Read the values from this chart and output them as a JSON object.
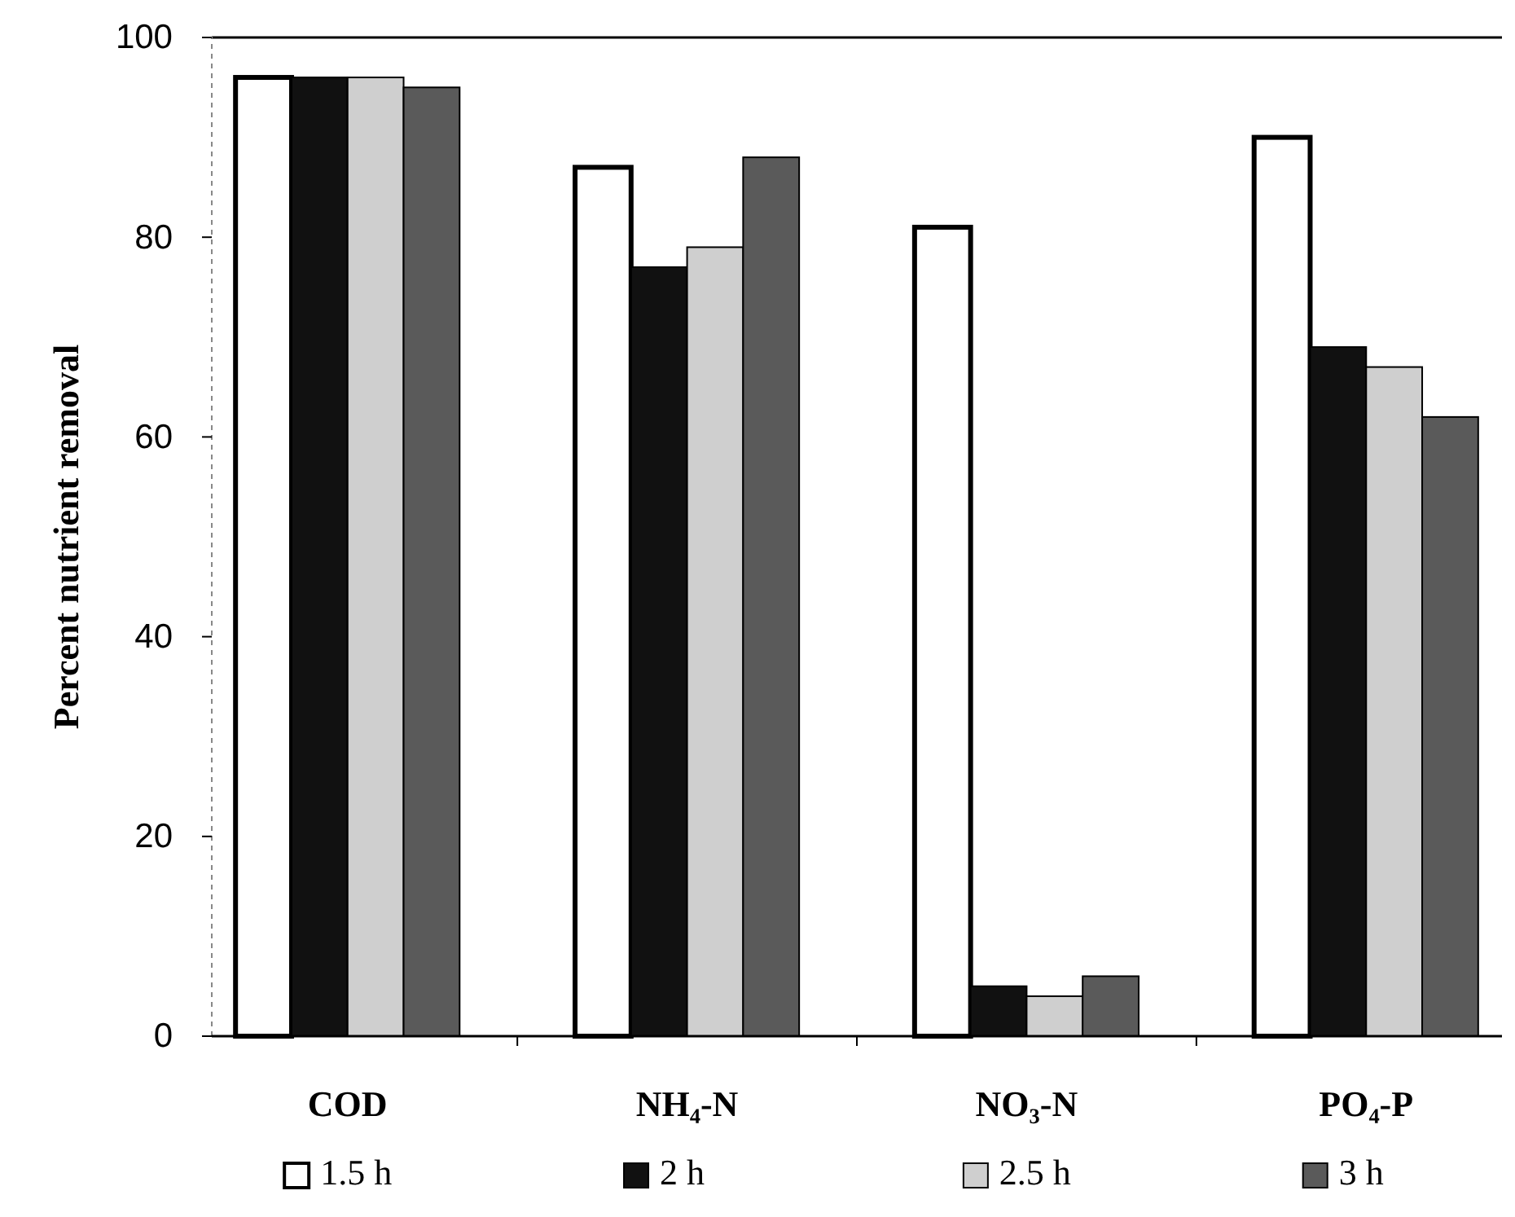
{
  "chart_data": {
    "type": "bar",
    "ylabel": "Percent nutrient removal",
    "categories": [
      "COD",
      "NH₄-N",
      "NO₃-N",
      "PO₄-P"
    ],
    "series": [
      {
        "name": "1.5 h",
        "color": "#ffffff",
        "values": [
          96,
          87,
          81,
          90
        ]
      },
      {
        "name": "2 h",
        "color": "#111111",
        "values": [
          96,
          77,
          5,
          69
        ]
      },
      {
        "name": "2.5 h",
        "color": "#cfcfcf",
        "values": [
          96,
          79,
          4,
          67
        ]
      },
      {
        "name": "3 h",
        "color": "#5a5a5a",
        "values": [
          95,
          88,
          6,
          62
        ]
      }
    ],
    "ylim": [
      0,
      100
    ],
    "yticks": [
      0,
      20,
      40,
      60,
      80,
      100
    ],
    "grid": false,
    "legend": "bottom"
  }
}
